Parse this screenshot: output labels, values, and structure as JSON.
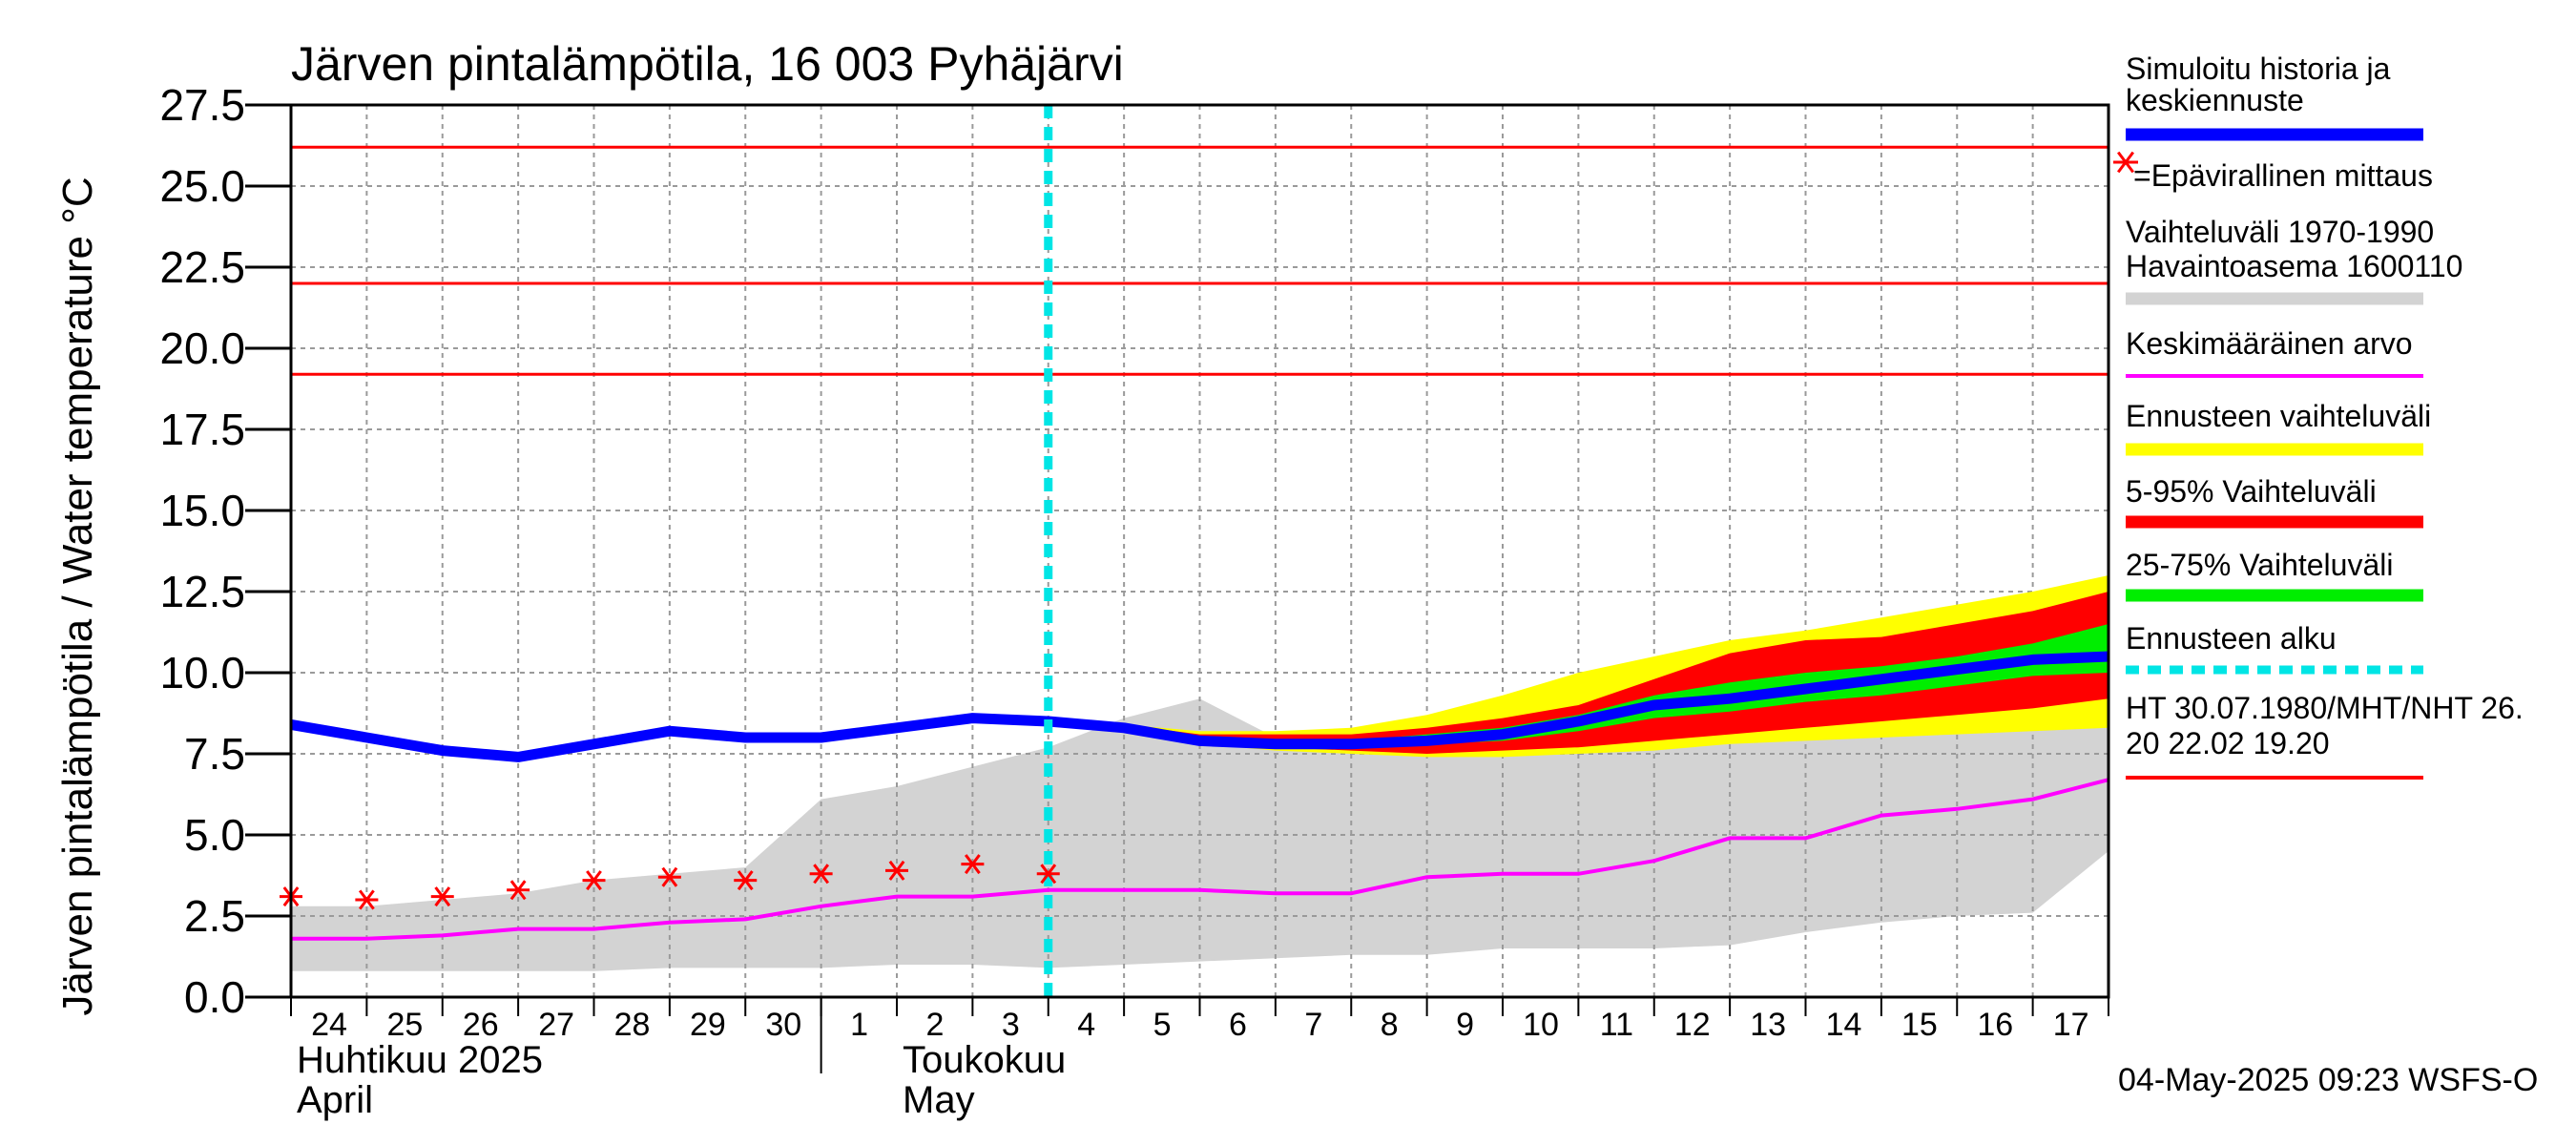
{
  "chart_data": {
    "type": "line",
    "title": "Järven pintalämpötila, 16 003 Pyhäjärvi",
    "ylabel": "Järven pintalämpötila / Water temperature °C",
    "xlabel": "",
    "ylim": [
      0,
      27.5
    ],
    "y_ticks": [
      "0.0",
      "2.5",
      "5.0",
      "7.5",
      "10.0",
      "12.5",
      "15.0",
      "17.5",
      "20.0",
      "22.5",
      "25.0",
      "27.5"
    ],
    "y_tick_values": [
      0,
      2.5,
      5,
      7.5,
      10,
      12.5,
      15,
      17.5,
      20,
      22.5,
      25,
      27.5
    ],
    "x_range": [
      0,
      24
    ],
    "x_day_labels": [
      "24",
      "25",
      "26",
      "27",
      "28",
      "29",
      "30",
      "1",
      "2",
      "3",
      "4",
      "5",
      "6",
      "7",
      "8",
      "9",
      "10",
      "11",
      "12",
      "13",
      "14",
      "15",
      "16",
      "17"
    ],
    "month_labels": [
      {
        "line1": "Huhtikuu  2025",
        "line2": "April",
        "x": 0
      },
      {
        "line1": "Toukokuu",
        "line2": "May",
        "x": 8
      }
    ],
    "month_boundary_x": 7,
    "forecast_start_x": 10,
    "hlines": [
      {
        "name": "HT",
        "y": 26.2
      },
      {
        "name": "MHT",
        "y": 22.0
      },
      {
        "name": "NHT",
        "y": 19.2
      }
    ],
    "series": [
      {
        "name": "Simuloitu historia ja keskiennuste",
        "x": [
          0,
          1,
          2,
          3,
          4,
          5,
          6,
          7,
          8,
          9,
          10,
          11,
          12,
          13,
          14,
          15,
          16,
          17,
          18,
          19,
          20,
          21,
          22,
          23,
          24
        ],
        "values": [
          8.4,
          8.0,
          7.6,
          7.4,
          7.8,
          8.2,
          8.0,
          8.0,
          8.3,
          8.6,
          8.5,
          8.3,
          7.9,
          7.8,
          7.8,
          7.9,
          8.1,
          8.5,
          9.0,
          9.2,
          9.5,
          9.8,
          10.1,
          10.4,
          10.5
        ]
      },
      {
        "name": "Keskimääräinen arvo",
        "x": [
          0,
          1,
          2,
          3,
          4,
          5,
          6,
          7,
          8,
          9,
          10,
          11,
          12,
          13,
          14,
          15,
          16,
          17,
          18,
          19,
          20,
          21,
          22,
          23,
          24
        ],
        "values": [
          1.8,
          1.8,
          1.9,
          2.1,
          2.1,
          2.3,
          2.4,
          2.8,
          3.1,
          3.1,
          3.3,
          3.3,
          3.3,
          3.2,
          3.2,
          3.7,
          3.8,
          3.8,
          4.2,
          4.9,
          4.9,
          5.6,
          5.8,
          6.1,
          6.7
        ]
      },
      {
        "name": "Epävirallinen mittaus",
        "x": [
          0,
          1,
          2,
          3,
          4,
          5,
          6,
          7,
          8,
          9,
          10
        ],
        "values": [
          3.1,
          3.0,
          3.1,
          3.3,
          3.6,
          3.7,
          3.6,
          3.8,
          3.9,
          4.1,
          3.8
        ]
      }
    ],
    "bands": [
      {
        "name": "Vaihteluväli 1970-1990",
        "x": [
          0,
          1,
          2,
          3,
          4,
          5,
          6,
          7,
          8,
          9,
          10,
          11,
          12,
          13,
          14,
          15,
          16,
          17,
          18,
          19,
          20,
          21,
          22,
          23,
          24
        ],
        "low": [
          0.8,
          0.8,
          0.8,
          0.8,
          0.8,
          0.9,
          0.9,
          0.9,
          1.0,
          1.0,
          0.9,
          1.0,
          1.1,
          1.2,
          1.3,
          1.3,
          1.5,
          1.5,
          1.5,
          1.6,
          2.0,
          2.3,
          2.5,
          2.6,
          4.5
        ],
        "high": [
          2.8,
          2.8,
          3.0,
          3.2,
          3.6,
          3.8,
          4.0,
          6.1,
          6.5,
          7.1,
          7.7,
          8.6,
          9.2,
          8.0,
          7.8,
          7.9,
          7.8,
          7.9,
          8.0,
          8.1,
          8.3,
          8.3,
          8.5,
          8.7,
          8.8
        ]
      },
      {
        "name": "Ennusteen vaihteluväli",
        "x": [
          10,
          11,
          12,
          13,
          14,
          15,
          16,
          17,
          18,
          19,
          20,
          21,
          22,
          23,
          24
        ],
        "low": [
          8.5,
          8.3,
          7.8,
          7.6,
          7.5,
          7.4,
          7.4,
          7.5,
          7.6,
          7.8,
          7.9,
          8.0,
          8.1,
          8.2,
          8.3
        ],
        "high": [
          8.5,
          8.4,
          8.2,
          8.2,
          8.3,
          8.7,
          9.3,
          10.0,
          10.5,
          11.0,
          11.3,
          11.7,
          12.1,
          12.5,
          13.0
        ]
      },
      {
        "name": "5-95% Vaihteluväli",
        "x": [
          10,
          11,
          12,
          13,
          14,
          15,
          16,
          17,
          18,
          19,
          20,
          21,
          22,
          23,
          24
        ],
        "low": [
          8.5,
          8.3,
          7.8,
          7.7,
          7.6,
          7.5,
          7.6,
          7.7,
          7.9,
          8.1,
          8.3,
          8.5,
          8.7,
          8.9,
          9.2
        ],
        "high": [
          8.5,
          8.4,
          8.1,
          8.1,
          8.1,
          8.3,
          8.6,
          9.0,
          9.8,
          10.6,
          11.0,
          11.1,
          11.5,
          11.9,
          12.5
        ]
      },
      {
        "name": "25-75% Vaihteluväli",
        "x": [
          10,
          11,
          12,
          13,
          14,
          15,
          16,
          17,
          18,
          19,
          20,
          21,
          22,
          23,
          24
        ],
        "low": [
          8.5,
          8.3,
          7.9,
          7.8,
          7.8,
          7.8,
          7.9,
          8.2,
          8.6,
          8.8,
          9.1,
          9.3,
          9.6,
          9.9,
          10.0
        ],
        "high": [
          8.5,
          8.3,
          8.0,
          7.9,
          7.9,
          8.1,
          8.3,
          8.7,
          9.3,
          9.7,
          10.0,
          10.2,
          10.5,
          10.9,
          11.5
        ]
      }
    ]
  },
  "legend": {
    "items": [
      {
        "label_lines": [
          "Simuloitu historia ja",
          "keskiennuste"
        ],
        "color": "#0000ff",
        "style": "thick"
      },
      {
        "label_lines": [
          "=Epävirallinen mittaus"
        ],
        "color": "#ff0000",
        "style": "star"
      },
      {
        "label_lines": [
          "Vaihteluväli 1970-1990",
          " Havaintoasema 1600110"
        ],
        "color": "#d3d3d3",
        "style": "thick"
      },
      {
        "label_lines": [
          "Keskimääräinen arvo"
        ],
        "color": "#ff00ff",
        "style": "thin"
      },
      {
        "label_lines": [
          "Ennusteen vaihteluväli"
        ],
        "color": "#ffff00",
        "style": "thick"
      },
      {
        "label_lines": [
          "5-95% Vaihteluväli"
        ],
        "color": "#ff0000",
        "style": "thick"
      },
      {
        "label_lines": [
          "25-75% Vaihteluväli"
        ],
        "color": "#00ee00",
        "style": "thick"
      },
      {
        "label_lines": [
          "Ennusteen alku"
        ],
        "color": "#00e5e5",
        "style": "dashed"
      },
      {
        "label_lines": [
          "HT 30.07.1980/MHT/NHT 26.",
          "20 22.02 19.20"
        ],
        "color": "#ff0000",
        "style": "thin"
      }
    ]
  },
  "footer": "04-May-2025 09:23 WSFS-O",
  "colors": {
    "history": "#0000ff",
    "mean": "#ff00ff",
    "range_1970_1990": "#d3d3d3",
    "forecast_range": "#ffff00",
    "p5_95": "#ff0000",
    "p25_75": "#00ee00",
    "forecast_start": "#00e5e5",
    "hline": "#ff0000",
    "measurement": "#ff0000",
    "grid": "#9a9a9a"
  }
}
